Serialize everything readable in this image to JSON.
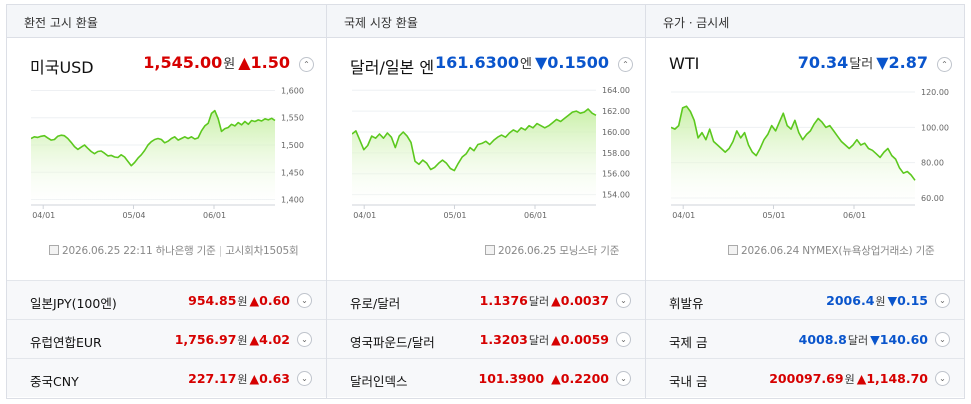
{
  "colors": {
    "up": "#d60000",
    "down": "#0a55cc",
    "line": "#5cc81e",
    "area_top": "#c3ee9e"
  },
  "columns": [
    {
      "header": "환전 고시 환율",
      "main": {
        "name": "미국USD",
        "value": "1,545.00",
        "unit": "원",
        "direction": "up",
        "change": "▲1.50",
        "toggle": "⌃"
      },
      "chart_data": {
        "type": "area",
        "x_ticks": [
          "04/01",
          "05/04",
          "06/01"
        ],
        "y_ticks": [
          "1,600",
          "1,550",
          "1,500",
          "1,450",
          "1,400"
        ],
        "ylim": [
          1390,
          1610
        ],
        "values": [
          1512,
          1515,
          1514,
          1516,
          1517,
          1513,
          1509,
          1510,
          1516,
          1518,
          1517,
          1512,
          1505,
          1497,
          1492,
          1496,
          1500,
          1494,
          1488,
          1484,
          1488,
          1489,
          1485,
          1480,
          1481,
          1478,
          1477,
          1482,
          1478,
          1470,
          1462,
          1468,
          1476,
          1482,
          1490,
          1500,
          1506,
          1510,
          1512,
          1510,
          1504,
          1507,
          1512,
          1515,
          1509,
          1512,
          1515,
          1512,
          1515,
          1511,
          1513,
          1526,
          1535,
          1540,
          1558,
          1563,
          1548,
          1525,
          1530,
          1532,
          1538,
          1535,
          1541,
          1537,
          1543,
          1538,
          1545,
          1543,
          1546,
          1544,
          1548,
          1546,
          1549,
          1545
        ]
      },
      "note": {
        "date": "2026.06.25 22:11",
        "source": "하나은행 기준",
        "extra": "고시회차1505회"
      },
      "rows": [
        {
          "name": "일본JPY(100엔)",
          "value": "954.85",
          "unit": "원",
          "direction": "up",
          "change": "▲0.60",
          "toggle": "⌄"
        },
        {
          "name": "유럽연합EUR",
          "value": "1,756.97",
          "unit": "원",
          "direction": "up",
          "change": "▲4.02",
          "toggle": "⌄"
        },
        {
          "name": "중국CNY",
          "value": "227.17",
          "unit": "원",
          "direction": "up",
          "change": "▲0.63",
          "toggle": "⌄"
        }
      ]
    },
    {
      "header": "국제 시장 환율",
      "main": {
        "name": "달러/일본 엔",
        "value": "161.6300",
        "unit": "엔",
        "direction": "down",
        "change": "▼0.1500",
        "toggle": "⌃"
      },
      "chart_data": {
        "type": "area",
        "x_ticks": [
          "04/01",
          "05/01",
          "06/01"
        ],
        "y_ticks": [
          "164.00",
          "162.00",
          "160.00",
          "158.00",
          "156.00",
          "154.00"
        ],
        "ylim": [
          153,
          164.5
        ],
        "values": [
          159.8,
          160.1,
          159.2,
          158.3,
          158.7,
          159.6,
          159.4,
          159.8,
          159.4,
          159.9,
          159.5,
          158.5,
          159.6,
          160.0,
          159.6,
          159.0,
          157.2,
          156.9,
          157.3,
          157.0,
          156.4,
          156.6,
          157.0,
          157.3,
          157.0,
          156.5,
          156.3,
          157.0,
          157.6,
          157.9,
          158.5,
          158.2,
          158.8,
          158.9,
          159.1,
          158.8,
          159.2,
          159.5,
          159.7,
          159.5,
          159.9,
          160.2,
          160.0,
          160.4,
          160.2,
          160.6,
          160.4,
          160.8,
          160.6,
          160.4,
          160.6,
          160.9,
          161.2,
          161.0,
          161.3,
          161.6,
          161.9,
          162.0,
          161.8,
          161.9,
          162.2,
          161.8,
          161.6
        ]
      },
      "note": {
        "date": "2026.06.25",
        "source": "모닝스타 기준",
        "extra": ""
      },
      "rows": [
        {
          "name": "유로/달러",
          "value": "1.1376",
          "unit": "달러",
          "direction": "up",
          "change": "▲0.0037",
          "toggle": "⌄"
        },
        {
          "name": "영국파운드/달러",
          "value": "1.3203",
          "unit": "달러",
          "direction": "up",
          "change": "▲0.0059",
          "toggle": "⌄"
        },
        {
          "name": "달러인덱스",
          "value": "101.3900",
          "unit": "",
          "direction": "up",
          "change": "▲0.2200",
          "toggle": "⌄"
        }
      ]
    },
    {
      "header": "유가ㆍ금시세",
      "main": {
        "name": "WTI",
        "value": "70.34",
        "unit": "달러",
        "direction": "down",
        "change": "▼2.87",
        "toggle": "⌃"
      },
      "chart_data": {
        "type": "area",
        "x_ticks": [
          "04/01",
          "05/01",
          "06/01"
        ],
        "y_ticks": [
          "120.00",
          "100.00",
          "80.00",
          "60.00"
        ],
        "ylim": [
          56,
          124
        ],
        "values": [
          100,
          99,
          101,
          111,
          112,
          109,
          104,
          94,
          97,
          93,
          99,
          92,
          90,
          88,
          86,
          88,
          92,
          98,
          94,
          97,
          90,
          86,
          84,
          88,
          93,
          96,
          101,
          98,
          103,
          108,
          101,
          99,
          104,
          97,
          93,
          96,
          98,
          102,
          105,
          103,
          100,
          101,
          98,
          95,
          92,
          90,
          88,
          90,
          93,
          90,
          91,
          88,
          87,
          85,
          83,
          86,
          88,
          84,
          82,
          77,
          74,
          75,
          73,
          70
        ]
      },
      "note": {
        "date": "2026.06.24",
        "source": "NYMEX(뉴욕상업거래소) 기준",
        "extra": ""
      },
      "rows": [
        {
          "name": "휘발유",
          "value": "2006.4",
          "unit": "원",
          "direction": "down",
          "change": "▼0.15",
          "toggle": "⌄"
        },
        {
          "name": "국제 금",
          "value": "4008.8",
          "unit": "달러",
          "direction": "down",
          "change": "▼140.60",
          "toggle": "⌄"
        },
        {
          "name": "국내 금",
          "value": "200097.69",
          "unit": "원",
          "direction": "up",
          "change": "▲1,148.70",
          "toggle": "⌄"
        }
      ]
    }
  ]
}
